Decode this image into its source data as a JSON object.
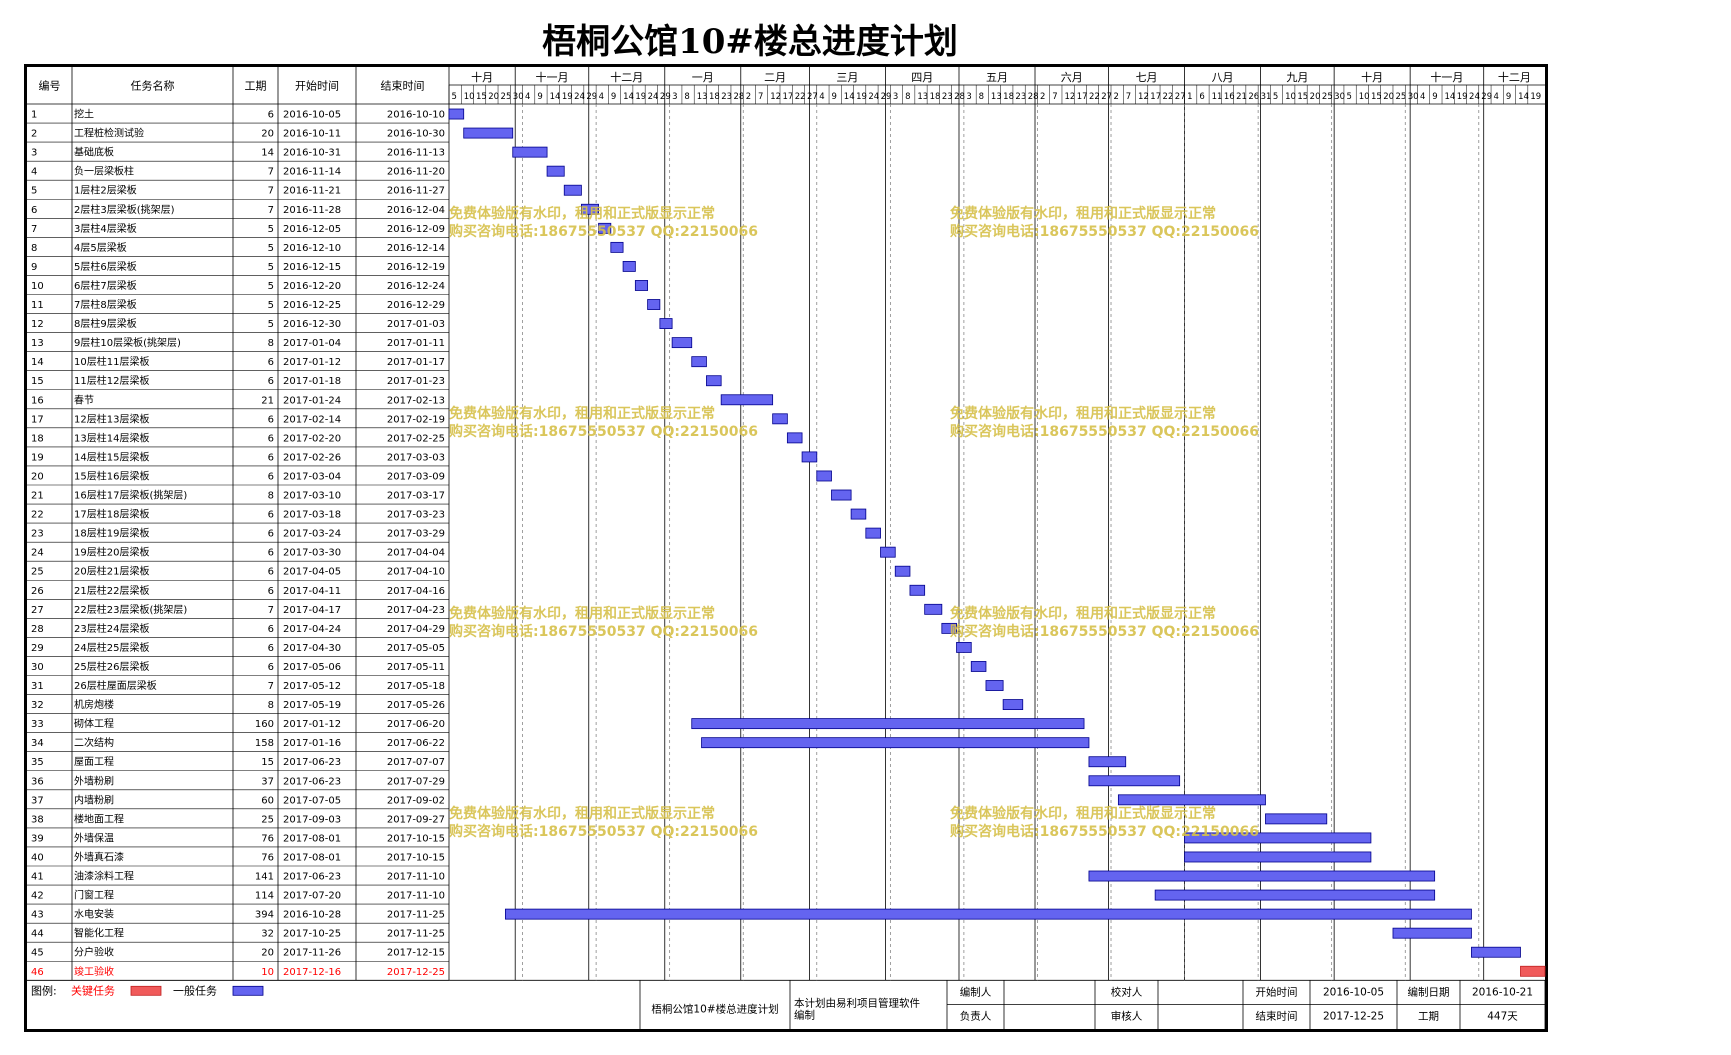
{
  "title": "梧桐公馆10#楼总进度计划",
  "headers": {
    "id": "编号",
    "name": "任务名称",
    "dur": "工期",
    "start": "开始时间",
    "end": "结束时间"
  },
  "months": [
    "十月",
    "十一月",
    "十二月",
    "一月",
    "二月",
    "三月",
    "四月",
    "五月",
    "六月",
    "七月",
    "八月",
    "九月",
    "十月",
    "十一月",
    "十二月"
  ],
  "day_ticks": [
    [
      "5",
      "10",
      "15",
      "20",
      "25",
      "30"
    ],
    [
      "4",
      "9",
      "14",
      "19",
      "24",
      "29"
    ],
    [
      "4",
      "9",
      "14",
      "19",
      "24",
      "29"
    ],
    [
      "3",
      "8",
      "13",
      "18",
      "23",
      "28"
    ],
    [
      "2",
      "7",
      "12",
      "17",
      "22",
      "27"
    ],
    [
      "4",
      "9",
      "14",
      "19",
      "24",
      "29"
    ],
    [
      "3",
      "8",
      "13",
      "18",
      "23",
      "28"
    ],
    [
      "3",
      "8",
      "13",
      "18",
      "23",
      "28"
    ],
    [
      "2",
      "7",
      "12",
      "17",
      "22",
      "27"
    ],
    [
      "2",
      "7",
      "12",
      "17",
      "22",
      "27"
    ],
    [
      "1",
      "6",
      "11",
      "16",
      "21",
      "26",
      "31"
    ],
    [
      "5",
      "10",
      "15",
      "20",
      "25",
      "30"
    ],
    [
      "5",
      "10",
      "15",
      "20",
      "25",
      "30"
    ],
    [
      "4",
      "9",
      "14",
      "19",
      "24",
      "29"
    ],
    [
      "4",
      "9",
      "14",
      "19"
    ]
  ],
  "chart_data": {
    "type": "gantt",
    "x_axis": "date",
    "x_range": [
      "2016-10-05",
      "2017-12-25"
    ],
    "tasks": [
      {
        "id": "1",
        "name": "挖土",
        "duration": "6",
        "start": "2016-10-05",
        "end": "2016-10-10",
        "critical": false
      },
      {
        "id": "2",
        "name": "工程桩检测试验",
        "duration": "20",
        "start": "2016-10-11",
        "end": "2016-10-30",
        "critical": false
      },
      {
        "id": "3",
        "name": "基础底板",
        "duration": "14",
        "start": "2016-10-31",
        "end": "2016-11-13",
        "critical": false
      },
      {
        "id": "4",
        "name": "负一层梁板柱",
        "duration": "7",
        "start": "2016-11-14",
        "end": "2016-11-20",
        "critical": false
      },
      {
        "id": "5",
        "name": "1层柱2层梁板",
        "duration": "7",
        "start": "2016-11-21",
        "end": "2016-11-27",
        "critical": false
      },
      {
        "id": "6",
        "name": "2层柱3层梁板(挑架层)",
        "duration": "7",
        "start": "2016-11-28",
        "end": "2016-12-04",
        "critical": false
      },
      {
        "id": "7",
        "name": "3层柱4层梁板",
        "duration": "5",
        "start": "2016-12-05",
        "end": "2016-12-09",
        "critical": false
      },
      {
        "id": "8",
        "name": "4层5层梁板",
        "duration": "5",
        "start": "2016-12-10",
        "end": "2016-12-14",
        "critical": false
      },
      {
        "id": "9",
        "name": "5层柱6层梁板",
        "duration": "5",
        "start": "2016-12-15",
        "end": "2016-12-19",
        "critical": false
      },
      {
        "id": "10",
        "name": "6层柱7层梁板",
        "duration": "5",
        "start": "2016-12-20",
        "end": "2016-12-24",
        "critical": false
      },
      {
        "id": "11",
        "name": "7层柱8层梁板",
        "duration": "5",
        "start": "2016-12-25",
        "end": "2016-12-29",
        "critical": false
      },
      {
        "id": "12",
        "name": "8层柱9层梁板",
        "duration": "5",
        "start": "2016-12-30",
        "end": "2017-01-03",
        "critical": false
      },
      {
        "id": "13",
        "name": "9层柱10层梁板(挑架层)",
        "duration": "8",
        "start": "2017-01-04",
        "end": "2017-01-11",
        "critical": false
      },
      {
        "id": "14",
        "name": "10层柱11层梁板",
        "duration": "6",
        "start": "2017-01-12",
        "end": "2017-01-17",
        "critical": false
      },
      {
        "id": "15",
        "name": "11层柱12层梁板",
        "duration": "6",
        "start": "2017-01-18",
        "end": "2017-01-23",
        "critical": false
      },
      {
        "id": "16",
        "name": "春节",
        "duration": "21",
        "start": "2017-01-24",
        "end": "2017-02-13",
        "critical": false
      },
      {
        "id": "17",
        "name": "12层柱13层梁板",
        "duration": "6",
        "start": "2017-02-14",
        "end": "2017-02-19",
        "critical": false
      },
      {
        "id": "18",
        "name": "13层柱14层梁板",
        "duration": "6",
        "start": "2017-02-20",
        "end": "2017-02-25",
        "critical": false
      },
      {
        "id": "19",
        "name": "14层柱15层梁板",
        "duration": "6",
        "start": "2017-02-26",
        "end": "2017-03-03",
        "critical": false
      },
      {
        "id": "20",
        "name": "15层柱16层梁板",
        "duration": "6",
        "start": "2017-03-04",
        "end": "2017-03-09",
        "critical": false
      },
      {
        "id": "21",
        "name": "16层柱17层梁板(挑架层)",
        "duration": "8",
        "start": "2017-03-10",
        "end": "2017-03-17",
        "critical": false
      },
      {
        "id": "22",
        "name": "17层柱18层梁板",
        "duration": "6",
        "start": "2017-03-18",
        "end": "2017-03-23",
        "critical": false
      },
      {
        "id": "23",
        "name": "18层柱19层梁板",
        "duration": "6",
        "start": "2017-03-24",
        "end": "2017-03-29",
        "critical": false
      },
      {
        "id": "24",
        "name": "19层柱20层梁板",
        "duration": "6",
        "start": "2017-03-30",
        "end": "2017-04-04",
        "critical": false
      },
      {
        "id": "25",
        "name": "20层柱21层梁板",
        "duration": "6",
        "start": "2017-04-05",
        "end": "2017-04-10",
        "critical": false
      },
      {
        "id": "26",
        "name": "21层柱22层梁板",
        "duration": "6",
        "start": "2017-04-11",
        "end": "2017-04-16",
        "critical": false
      },
      {
        "id": "27",
        "name": "22层柱23层梁板(挑架层)",
        "duration": "7",
        "start": "2017-04-17",
        "end": "2017-04-23",
        "critical": false
      },
      {
        "id": "28",
        "name": "23层柱24层梁板",
        "duration": "6",
        "start": "2017-04-24",
        "end": "2017-04-29",
        "critical": false
      },
      {
        "id": "29",
        "name": "24层柱25层梁板",
        "duration": "6",
        "start": "2017-04-30",
        "end": "2017-05-05",
        "critical": false
      },
      {
        "id": "30",
        "name": "25层柱26层梁板",
        "duration": "6",
        "start": "2017-05-06",
        "end": "2017-05-11",
        "critical": false
      },
      {
        "id": "31",
        "name": "26层柱屋面层梁板",
        "duration": "7",
        "start": "2017-05-12",
        "end": "2017-05-18",
        "critical": false
      },
      {
        "id": "32",
        "name": "机房炮楼",
        "duration": "8",
        "start": "2017-05-19",
        "end": "2017-05-26",
        "critical": false
      },
      {
        "id": "33",
        "name": "砌体工程",
        "duration": "160",
        "start": "2017-01-12",
        "end": "2017-06-20",
        "critical": false
      },
      {
        "id": "34",
        "name": "二次结构",
        "duration": "158",
        "start": "2017-01-16",
        "end": "2017-06-22",
        "critical": false
      },
      {
        "id": "35",
        "name": "屋面工程",
        "duration": "15",
        "start": "2017-06-23",
        "end": "2017-07-07",
        "critical": false
      },
      {
        "id": "36",
        "name": "外墙粉刷",
        "duration": "37",
        "start": "2017-06-23",
        "end": "2017-07-29",
        "critical": false
      },
      {
        "id": "37",
        "name": "内墙粉刷",
        "duration": "60",
        "start": "2017-07-05",
        "end": "2017-09-02",
        "critical": false
      },
      {
        "id": "38",
        "name": "楼地面工程",
        "duration": "25",
        "start": "2017-09-03",
        "end": "2017-09-27",
        "critical": false
      },
      {
        "id": "39",
        "name": "外墙保温",
        "duration": "76",
        "start": "2017-08-01",
        "end": "2017-10-15",
        "critical": false
      },
      {
        "id": "40",
        "name": "外墙真石漆",
        "duration": "76",
        "start": "2017-08-01",
        "end": "2017-10-15",
        "critical": false
      },
      {
        "id": "41",
        "name": "油漆涂料工程",
        "duration": "141",
        "start": "2017-06-23",
        "end": "2017-11-10",
        "critical": false
      },
      {
        "id": "42",
        "name": "门窗工程",
        "duration": "114",
        "start": "2017-07-20",
        "end": "2017-11-10",
        "critical": false
      },
      {
        "id": "43",
        "name": "水电安装",
        "duration": "394",
        "start": "2016-10-28",
        "end": "2017-11-25",
        "critical": false
      },
      {
        "id": "44",
        "name": "智能化工程",
        "duration": "32",
        "start": "2017-10-25",
        "end": "2017-11-25",
        "critical": false
      },
      {
        "id": "45",
        "name": "分户验收",
        "duration": "20",
        "start": "2017-11-26",
        "end": "2017-12-15",
        "critical": false
      },
      {
        "id": "46",
        "name": "竣工验收",
        "duration": "10",
        "start": "2017-12-16",
        "end": "2017-12-25",
        "critical": true
      }
    ]
  },
  "colors": {
    "normal": "#6464f0",
    "critical": "#f05a5a",
    "critical_text": "#ff0000",
    "watermark": "#d6c04a"
  },
  "legend": {
    "label": "图例:",
    "critical": "关键任务",
    "normal": "一般任务"
  },
  "footer": {
    "plan_name": "梧桐公馆10#楼总进度计划",
    "software_note": "本计划由易利项目管理软件编制",
    "compiler_label": "编制人",
    "checker_label": "校对人",
    "start_label": "开始时间",
    "start_value": "2016-10-05",
    "compile_date_label": "编制日期",
    "compile_date_value": "2016-10-21",
    "responsible_label": "负责人",
    "reviewer_label": "审核人",
    "end_label": "结束时间",
    "end_value": "2017-12-25",
    "duration_label": "工期",
    "duration_value": "447天"
  },
  "watermark": {
    "line1": "免费体验版有水印，租用和正式版显示正常",
    "line2": "购买咨询电话:18675550537 QQ:22150066"
  }
}
